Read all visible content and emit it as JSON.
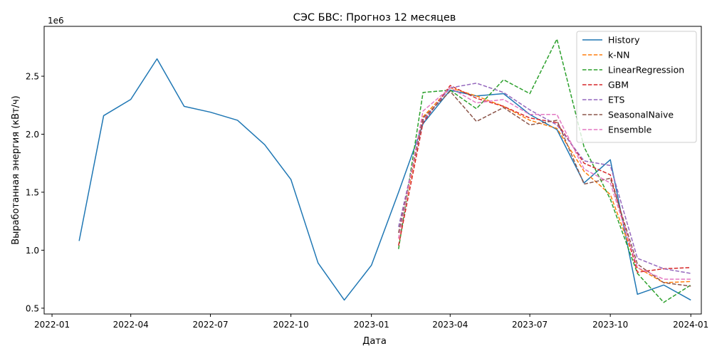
{
  "chart_data": {
    "type": "line",
    "title": "СЭС БВС: Прогноз 12 месяцев",
    "xlabel": "Дата",
    "ylabel": "Выработанная энергия (кВт/ч)",
    "y_offset_label": "1e6",
    "xlim": [
      "2021-12-23",
      "2024-01-13"
    ],
    "ylim": [
      0.45,
      2.93
    ],
    "y_scale_factor": 1000000,
    "x_ticks": [
      "2022-01-01",
      "2022-04-01",
      "2022-07-01",
      "2022-10-01",
      "2023-01-01",
      "2023-04-01",
      "2023-07-01",
      "2023-10-01",
      "2024-01-01"
    ],
    "x_tick_labels": [
      "2022-01",
      "2022-04",
      "2022-07",
      "2022-10",
      "2023-01",
      "2023-04",
      "2023-07",
      "2023-10",
      "2024-01"
    ],
    "y_ticks": [
      0.5,
      1.0,
      1.5,
      2.0,
      2.5
    ],
    "y_tick_labels": [
      "0.5",
      "1.0",
      "1.5",
      "2.0",
      "2.5"
    ],
    "grid": false,
    "legend_position": "top-right",
    "forecast_x": [
      "2023-02-01",
      "2023-03-01",
      "2023-04-01",
      "2023-05-01",
      "2023-06-01",
      "2023-07-01",
      "2023-08-01",
      "2023-09-01",
      "2023-10-01",
      "2023-11-01",
      "2023-12-01",
      "2024-01-01"
    ],
    "series": [
      {
        "name": "History",
        "color": "#1f77b4",
        "dash": "solid",
        "x": [
          "2022-02-01",
          "2022-03-01",
          "2022-04-01",
          "2022-05-01",
          "2022-06-01",
          "2022-07-01",
          "2022-08-01",
          "2022-09-01",
          "2022-10-01",
          "2022-11-01",
          "2022-12-01",
          "2023-01-01",
          "2023-02-01",
          "2023-03-01",
          "2023-04-01",
          "2023-05-01",
          "2023-06-01",
          "2023-07-01",
          "2023-08-01",
          "2023-09-01",
          "2023-10-01",
          "2023-11-01",
          "2023-12-01",
          "2024-01-01"
        ],
        "values": [
          1.08,
          2.16,
          2.3,
          2.65,
          2.24,
          2.19,
          2.12,
          1.91,
          1.61,
          0.89,
          0.57,
          0.87,
          1.5,
          2.09,
          2.38,
          2.33,
          2.35,
          2.17,
          2.04,
          1.58,
          1.78,
          0.62,
          0.7,
          0.57
        ]
      },
      {
        "name": "k-NN",
        "color": "#ff7f0e",
        "dash": "dashed",
        "values": [
          1.1,
          2.15,
          2.4,
          2.33,
          2.24,
          2.12,
          2.05,
          1.68,
          1.48,
          0.85,
          0.72,
          0.73
        ]
      },
      {
        "name": "LinearRegression",
        "color": "#2ca02c",
        "dash": "dashed",
        "values": [
          1.01,
          2.36,
          2.38,
          2.22,
          2.47,
          2.35,
          2.82,
          1.89,
          1.44,
          0.8,
          0.55,
          0.7
        ]
      },
      {
        "name": "GBM",
        "color": "#d62728",
        "dash": "dashed",
        "values": [
          1.04,
          2.1,
          2.42,
          2.31,
          2.24,
          2.14,
          2.1,
          1.75,
          1.65,
          0.81,
          0.84,
          0.85
        ]
      },
      {
        "name": "ETS",
        "color": "#9467bd",
        "dash": "dashed",
        "values": [
          1.2,
          2.12,
          2.4,
          2.44,
          2.36,
          2.21,
          2.08,
          1.77,
          1.73,
          0.93,
          0.84,
          0.8
        ]
      },
      {
        "name": "SeasonalNaive",
        "color": "#8c564b",
        "dash": "dashed",
        "values": [
          1.15,
          2.14,
          2.37,
          2.11,
          2.23,
          2.08,
          2.12,
          1.57,
          1.62,
          0.88,
          0.72,
          0.69
        ]
      },
      {
        "name": "Ensemble",
        "color": "#e377c2",
        "dash": "dashed",
        "values": [
          1.1,
          2.2,
          2.4,
          2.27,
          2.3,
          2.17,
          2.17,
          1.7,
          1.58,
          0.85,
          0.75,
          0.75
        ]
      }
    ]
  }
}
